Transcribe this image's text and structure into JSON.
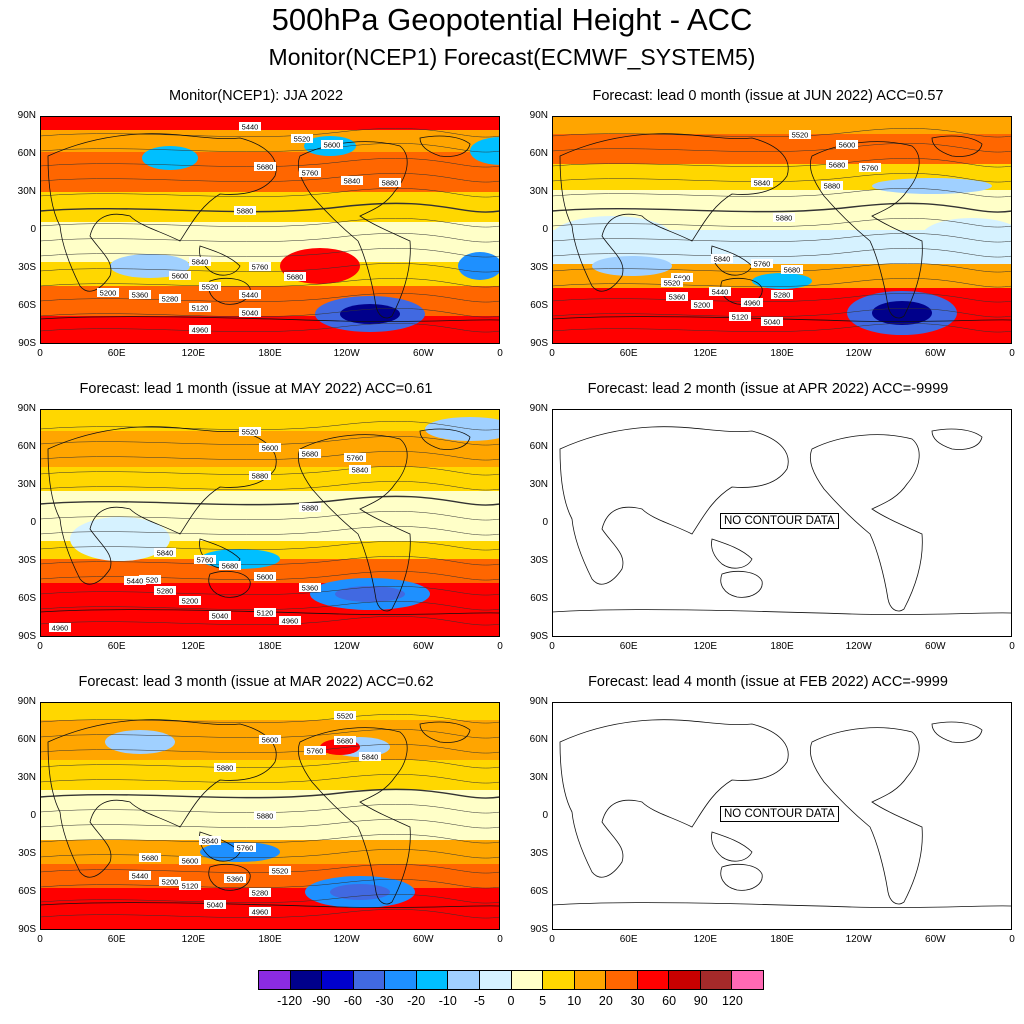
{
  "header": {
    "title": "500hPa Geopotential Height - ACC",
    "subtitle": "Monitor(NCEP1)   Forecast(ECMWF_SYSTEM5)"
  },
  "axes": {
    "lat_labels": [
      "90N",
      "60N",
      "30N",
      "0",
      "30S",
      "60S",
      "90S"
    ],
    "lon_labels": [
      "0",
      "60E",
      "120E",
      "180E",
      "120W",
      "60W",
      "0"
    ]
  },
  "panels": [
    {
      "title": "Monitor(NCEP1): JJA 2022",
      "has_data": true,
      "variant": "a",
      "contours": [
        "5440",
        "5520",
        "5600",
        "5680",
        "5760",
        "5840",
        "5880",
        "5880",
        "5840",
        "5760",
        "5680",
        "5600",
        "5520",
        "5440",
        "5360",
        "5280",
        "5200",
        "5120",
        "5040",
        "4960"
      ]
    },
    {
      "title": "Forecast: lead 0 month (issue at JUN 2022) ACC=0.57",
      "has_data": true,
      "variant": "b",
      "contours": [
        "5520",
        "5600",
        "5680",
        "5760",
        "5840",
        "5880",
        "5880",
        "5840",
        "5760",
        "5680",
        "5600",
        "5440",
        "5520",
        "5360",
        "5200",
        "5120",
        "5040",
        "4960",
        "5280"
      ]
    },
    {
      "title": "Forecast: lead 1 month (issue at MAY 2022) ACC=0.61",
      "has_data": true,
      "variant": "c",
      "contours": [
        "5520",
        "5600",
        "5680",
        "5760",
        "5840",
        "5880",
        "5880",
        "5840",
        "5760",
        "5680",
        "5600",
        "5520",
        "5440",
        "5280",
        "5200",
        "5360",
        "5040",
        "5120",
        "4960",
        "4960"
      ]
    },
    {
      "title": "Forecast: lead 2 month (issue at APR 2022) ACC=-9999",
      "has_data": false,
      "nodata_label": "NO CONTOUR DATA"
    },
    {
      "title": "Forecast: lead 3 month (issue at MAR 2022) ACC=0.62",
      "has_data": true,
      "variant": "d",
      "contours": [
        "5520",
        "5600",
        "5680",
        "5760",
        "5840",
        "5880",
        "5880",
        "5840",
        "5760",
        "5680",
        "5600",
        "5520",
        "5440",
        "5200",
        "5120",
        "5360",
        "5280",
        "5040",
        "4960"
      ]
    },
    {
      "title": "Forecast: lead 4 month (issue at FEB 2022) ACC=-9999",
      "has_data": false,
      "nodata_label": "NO CONTOUR DATA"
    }
  ],
  "legend": {
    "labels": [
      "-120",
      "-90",
      "-60",
      "-30",
      "-20",
      "-10",
      "-5",
      "0",
      "5",
      "10",
      "20",
      "30",
      "60",
      "90",
      "120"
    ],
    "colors": [
      "#8b2be2",
      "#00008b",
      "#0000cd",
      "#4169e1",
      "#1e90ff",
      "#00bfff",
      "#a0d0ff",
      "#d6f2ff",
      "#ffffc8",
      "#ffd700",
      "#ffa500",
      "#ff6600",
      "#ff0000",
      "#c80000",
      "#a52a2a",
      "#ff69b4"
    ]
  }
}
